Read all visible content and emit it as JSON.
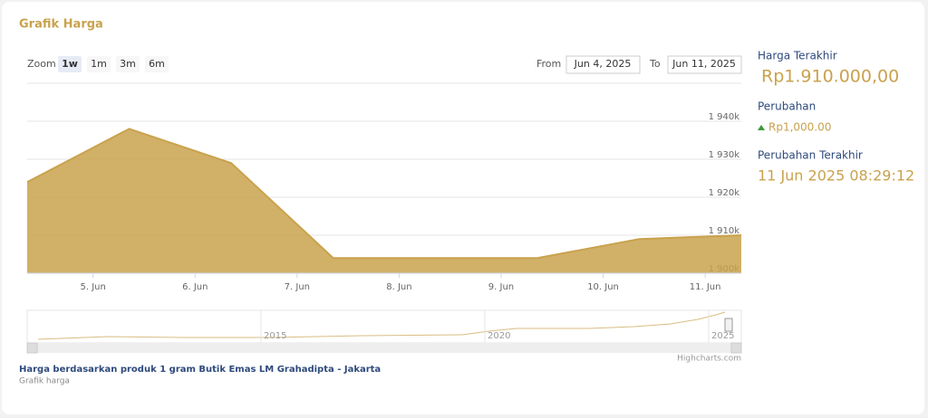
{
  "header": {
    "title": "Grafik Harga"
  },
  "zoom": {
    "label": "Zoom",
    "buttons": [
      "1w",
      "1m",
      "3m",
      "6m"
    ],
    "active": 0
  },
  "range": {
    "from_label": "From",
    "from": "Jun 4, 2025",
    "to_label": "To",
    "to": "Jun 11, 2025"
  },
  "chart_data": {
    "type": "area",
    "color": "#c9a24d",
    "x": [
      "2025-06-04T08:30",
      "2025-06-05T08:30",
      "2025-06-06T08:30",
      "2025-06-07T08:30",
      "2025-06-08T08:30",
      "2025-06-09T08:30",
      "2025-06-10T08:30",
      "2025-06-11T08:30"
    ],
    "values": [
      1924000,
      1938000,
      1929000,
      1904000,
      1904000,
      1904000,
      1909000,
      1910000
    ],
    "xlim": [
      "2025-06-04T08:30",
      "2025-06-11T08:30"
    ],
    "xticks": [
      {
        "value": "2025-06-05T00:00",
        "label": "5. Jun"
      },
      {
        "value": "2025-06-06T00:00",
        "label": "6. Jun"
      },
      {
        "value": "2025-06-07T00:00",
        "label": "7. Jun"
      },
      {
        "value": "2025-06-08T00:00",
        "label": "8. Jun"
      },
      {
        "value": "2025-06-09T00:00",
        "label": "9. Jun"
      },
      {
        "value": "2025-06-10T00:00",
        "label": "10. Jun"
      },
      {
        "value": "2025-06-11T00:00",
        "label": "11. Jun"
      }
    ],
    "ylim": [
      1900000,
      1950000
    ],
    "yticks": [
      {
        "value": 1900000,
        "label": "1 900k"
      },
      {
        "value": 1910000,
        "label": "1 910k"
      },
      {
        "value": 1920000,
        "label": "1 920k"
      },
      {
        "value": 1930000,
        "label": "1 930k"
      },
      {
        "value": 1940000,
        "label": "1 940k"
      }
    ],
    "grid": true
  },
  "navigator": {
    "labels": [
      "2015",
      "2020",
      "2025"
    ]
  },
  "credits": "Highcharts.com",
  "sidebar": {
    "last_price_label": "Harga Terakhir",
    "last_price": "Rp1.910.000,00",
    "change_label": "Perubahan",
    "change": "Rp1,000.00",
    "last_change_label": "Perubahan Terakhir",
    "last_change": "11 Jun 2025 08:29:12"
  },
  "caption": {
    "title": "Harga berdasarkan produk 1 gram Butik Emas LM Grahadipta - Jakarta",
    "subtitle": "Grafik harga"
  }
}
